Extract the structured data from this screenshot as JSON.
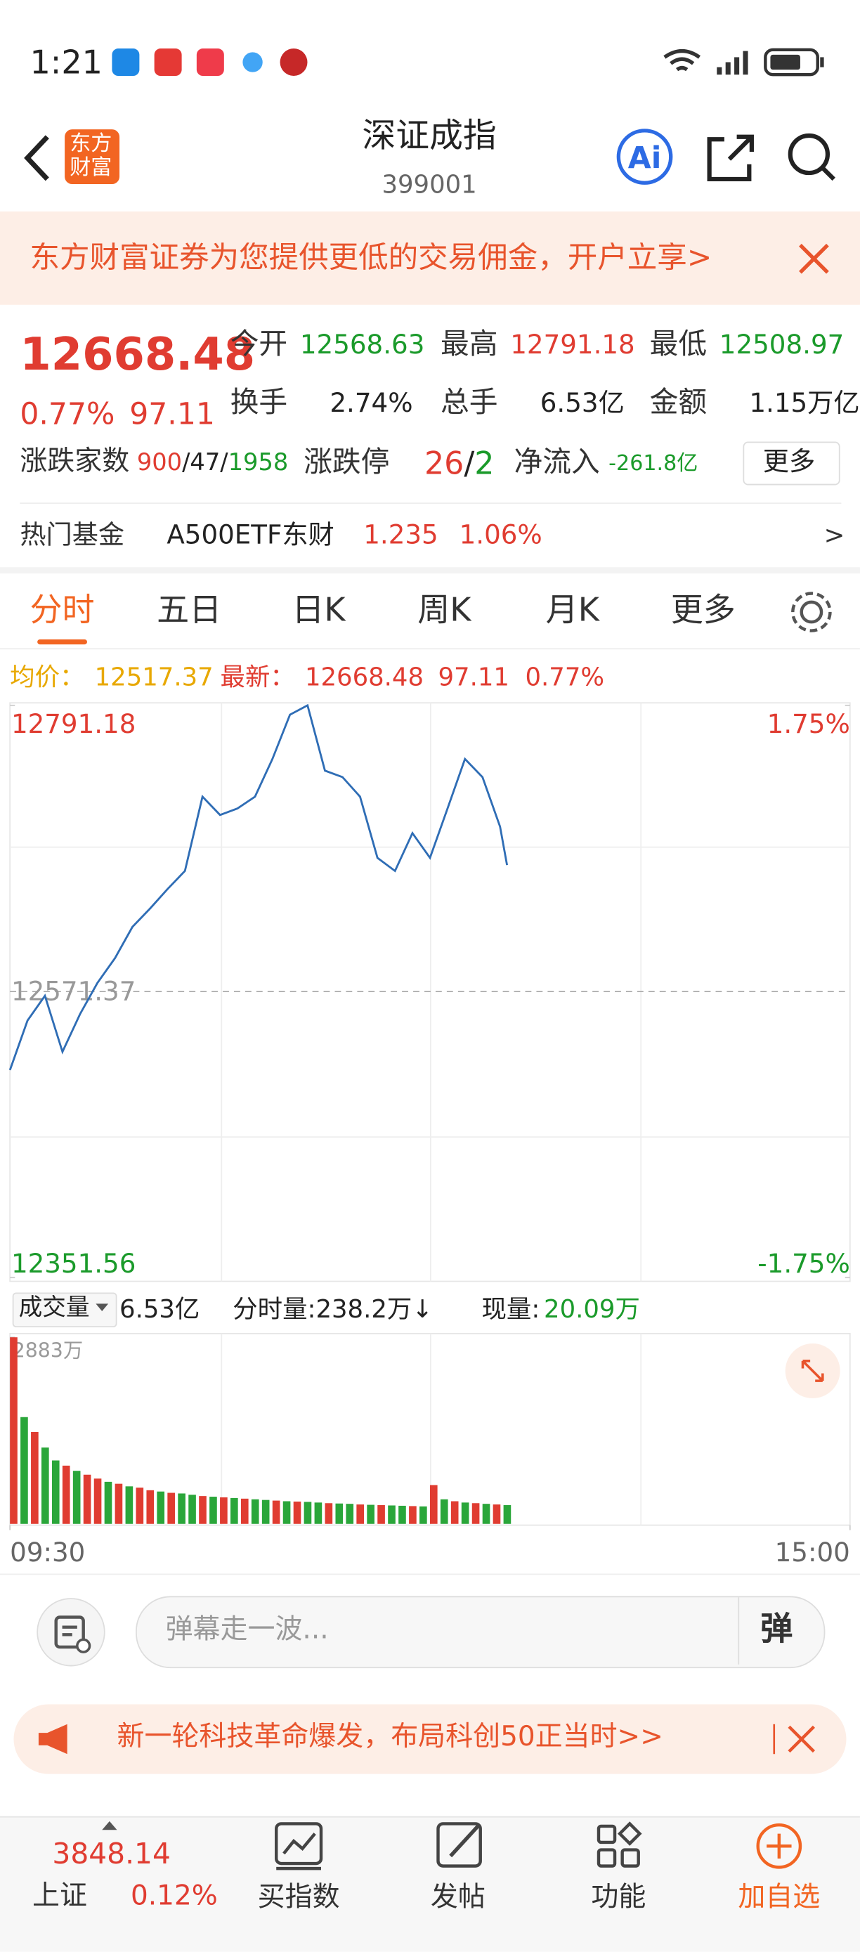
{
  "status_bar": {
    "time": "1:21"
  },
  "header": {
    "logo_top": "东方",
    "logo_bottom": "财富",
    "title": "深证成指",
    "code": "399001"
  },
  "banner": {
    "text": "东方财富证券为您提供更低的交易佣金，开户立享>"
  },
  "quote": {
    "price": "12668.48",
    "change_pct": "0.77%",
    "change": "97.11",
    "stats": [
      {
        "label": "今开",
        "value": "12568.63",
        "color": "#1a9a2a"
      },
      {
        "label": "最高",
        "value": "12791.18",
        "color": "#e03c31"
      },
      {
        "label": "最低",
        "value": "12508.97",
        "color": "#1a9a2a"
      },
      {
        "label": "换手",
        "value": "2.74%",
        "color": "#222"
      },
      {
        "label": "总手",
        "value": "6.53亿",
        "color": "#222"
      },
      {
        "label": "金额",
        "value": "1.15万亿",
        "color": "#222"
      }
    ],
    "breadth": {
      "label": "涨跌家数",
      "parts": [
        "900",
        "/",
        "47",
        "/",
        "1958"
      ],
      "colors": [
        "#e03c31",
        "#222",
        "#222",
        "#222",
        "#1a9a2a"
      ]
    },
    "limit": {
      "label": "涨跌停",
      "parts": [
        "26",
        "/",
        "2"
      ],
      "colors": [
        "#e03c31",
        "#222",
        "#1a9a2a"
      ]
    },
    "net_inflow": {
      "label": "净流入",
      "value": "-261.8亿"
    },
    "more": "更多"
  },
  "hot_fund": {
    "label": "热门基金",
    "name": "A500ETF东财",
    "price": "1.235",
    "change": "1.06%",
    "arrow": ">"
  },
  "tabs": [
    "分时",
    "五日",
    "日K",
    "周K",
    "月K",
    "更多"
  ],
  "chart_info": {
    "avg_label": "均价：",
    "avg": "12517.37",
    "last_label": "最新：",
    "last": "12668.48",
    "change": "97.11",
    "change_pct": "0.77%"
  },
  "volume_info": {
    "label": "成交量",
    "total": "6.53亿",
    "minute": "分时量:238.2万↓",
    "now_label": "现量:",
    "now": "20.09万"
  },
  "chart_data": [
    {
      "type": "line",
      "x": [
        "09:30",
        "09:35",
        "09:40",
        "09:45",
        "09:50",
        "09:55",
        "10:00",
        "10:05",
        "10:10",
        "10:15",
        "10:20",
        "10:25",
        "10:30",
        "10:35",
        "10:40",
        "10:45",
        "10:50",
        "10:55",
        "11:00",
        "11:05",
        "11:10",
        "11:15",
        "11:20",
        "11:25",
        "11:30",
        "13:05",
        "13:10",
        "13:15",
        "13:20",
        "13:22"
      ],
      "series": [
        {
          "color": "#2f6db5",
          "values": [
            12511,
            12549,
            12568,
            12525,
            12554,
            12578,
            12597,
            12621,
            12635,
            12650,
            12664,
            12721,
            12707,
            12712,
            12721,
            12750,
            12784,
            12791.18,
            12741,
            12736,
            12721,
            12674,
            12664,
            12693,
            12674,
            12712,
            12750,
            12736,
            12698,
            12668.48
          ]
        }
      ],
      "ylim": [
        12351.56,
        12791.18
      ],
      "yticks": [
        12351.56,
        12571.37,
        12791.18
      ],
      "ytick_colors": [
        "#1a9a2a",
        "#999999",
        "#e03c31"
      ],
      "y2lim": [
        -1.75,
        1.75
      ],
      "y2ticks": [
        {
          "value": -1.75,
          "label": "-1.75%"
        },
        {
          "value": 1.75,
          "label": "1.75%"
        }
      ],
      "y2tick_colors": [
        "#1a9a2a",
        "#e03c31"
      ]
    },
    {
      "type": "bar",
      "x": [
        "09:30",
        "09:33",
        "09:36",
        "09:39",
        "09:42",
        "09:45",
        "09:48",
        "09:51",
        "09:54",
        "09:57",
        "10:00",
        "10:03",
        "10:06",
        "10:09",
        "10:12",
        "10:15",
        "10:18",
        "10:21",
        "10:24",
        "10:27",
        "10:30",
        "10:33",
        "10:36",
        "10:39",
        "10:42",
        "10:45",
        "10:48",
        "10:51",
        "10:54",
        "10:57",
        "11:00",
        "11:03",
        "11:06",
        "11:09",
        "11:12",
        "11:15",
        "11:18",
        "11:21",
        "11:24",
        "11:27",
        "13:00",
        "13:03",
        "13:06",
        "13:09",
        "13:12",
        "13:15",
        "13:18",
        "13:21"
      ],
      "values": [
        2883,
        1650,
        1420,
        1180,
        980,
        900,
        820,
        760,
        700,
        650,
        620,
        580,
        560,
        520,
        500,
        480,
        470,
        450,
        430,
        420,
        410,
        400,
        390,
        380,
        370,
        360,
        350,
        345,
        340,
        330,
        320,
        315,
        310,
        300,
        295,
        290,
        285,
        280,
        275,
        270,
        600,
        380,
        350,
        330,
        320,
        310,
        300,
        290
      ],
      "colors": [
        "#e03c31",
        "#2aa63a",
        "#e03c31",
        "#2aa63a",
        "#2aa63a",
        "#e03c31",
        "#2aa63a",
        "#e03c31",
        "#e03c31",
        "#2aa63a",
        "#e03c31",
        "#2aa63a",
        "#e03c31",
        "#e03c31",
        "#2aa63a",
        "#e03c31",
        "#2aa63a",
        "#2aa63a",
        "#e03c31",
        "#2aa63a",
        "#e03c31",
        "#2aa63a",
        "#e03c31",
        "#2aa63a",
        "#2aa63a",
        "#e03c31",
        "#2aa63a",
        "#e03c31",
        "#2aa63a",
        "#2aa63a",
        "#e03c31",
        "#2aa63a",
        "#2aa63a",
        "#e03c31",
        "#2aa63a",
        "#e03c31",
        "#2aa63a",
        "#2aa63a",
        "#e03c31",
        "#2aa63a",
        "#e03c31",
        "#2aa63a",
        "#e03c31",
        "#2aa63a",
        "#e03c31",
        "#2aa63a",
        "#e03c31",
        "#2aa63a"
      ],
      "ylim": [
        0,
        2883
      ],
      "yticks": [
        {
          "value": 2883,
          "label": "2883万"
        }
      ],
      "xticks": [
        "09:30",
        "15:00"
      ]
    }
  ],
  "danmaku": {
    "placeholder": "弹幕走一波...",
    "button": "弹"
  },
  "promo": {
    "text": "新一轮科技革命爆发，布局科创50正当时>>"
  },
  "bottom_nav": {
    "index_price": "3848.14",
    "index_name": "上证",
    "index_change": "0.12%",
    "items": [
      "买指数",
      "发帖",
      "功能",
      "加自选"
    ]
  }
}
